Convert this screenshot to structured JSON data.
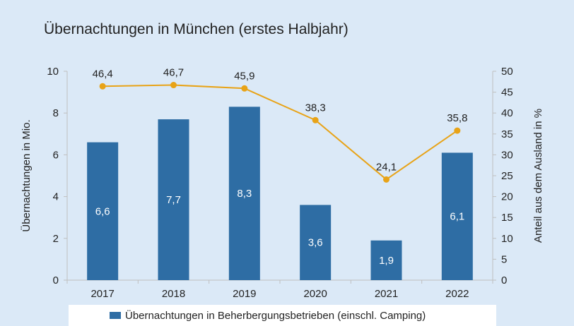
{
  "chart_data": {
    "type": "bar+line",
    "title": "Übernachtungen in München (erstes Halbjahr)",
    "categories": [
      "2017",
      "2018",
      "2019",
      "2020",
      "2021",
      "2022"
    ],
    "series": [
      {
        "name": "Übernachtungen in Beherbergungsbetrieben (einschl. Camping)",
        "type": "bar",
        "axis": "left",
        "values": [
          6.6,
          7.7,
          8.3,
          3.6,
          1.9,
          6.1
        ],
        "labels": [
          "6,6",
          "7,7",
          "8,3",
          "3,6",
          "1,9",
          "6,1"
        ],
        "color": "#2e6da4"
      },
      {
        "type": "line",
        "axis": "right",
        "values": [
          46.4,
          46.7,
          45.9,
          38.3,
          24.1,
          35.8
        ],
        "labels": [
          "46,4",
          "46,7",
          "45,9",
          "38,3",
          "24,1",
          "35,8"
        ],
        "color": "#e8a317"
      }
    ],
    "ylabel": "Übernachtungen in Mio.",
    "y2label": "Anteil aus dem Ausland in %",
    "ylim": [
      0,
      10
    ],
    "y2lim": [
      0,
      50
    ],
    "yticks": [
      "0",
      "2",
      "4",
      "6",
      "8",
      "10"
    ],
    "y2ticks": [
      "0",
      "5",
      "10",
      "15",
      "20",
      "25",
      "30",
      "35",
      "40",
      "45",
      "50"
    ],
    "grid": false,
    "legend_position": "bottom"
  }
}
